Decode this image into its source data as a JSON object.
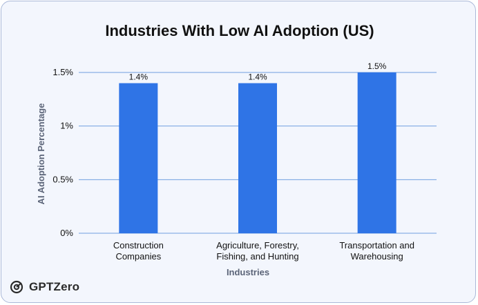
{
  "chart_data": {
    "type": "bar",
    "title": "Industries With Low AI Adoption (US)",
    "xlabel": "Industries",
    "ylabel": "AI Adoption Percentage",
    "categories": [
      [
        "Construction",
        "Companies"
      ],
      [
        "Agriculture, Forestry,",
        "Fishing, and Hunting"
      ],
      [
        "Transportation and",
        "Warehousing"
      ]
    ],
    "values": [
      1.4,
      1.4,
      1.5
    ],
    "data_labels": [
      "1.4%",
      "1.4%",
      "1.5%"
    ],
    "yticks": [
      0,
      0.5,
      1,
      1.5
    ],
    "ytick_labels": [
      "0%",
      "0.5%",
      "1%",
      "1.5%"
    ],
    "ylim": [
      0,
      1.5
    ],
    "grid": true,
    "bar_color": "#2f74e6",
    "grid_color": "#6f9fe0"
  },
  "brand": {
    "name": "GPTZero",
    "icon": "gptzero-logo-icon"
  }
}
